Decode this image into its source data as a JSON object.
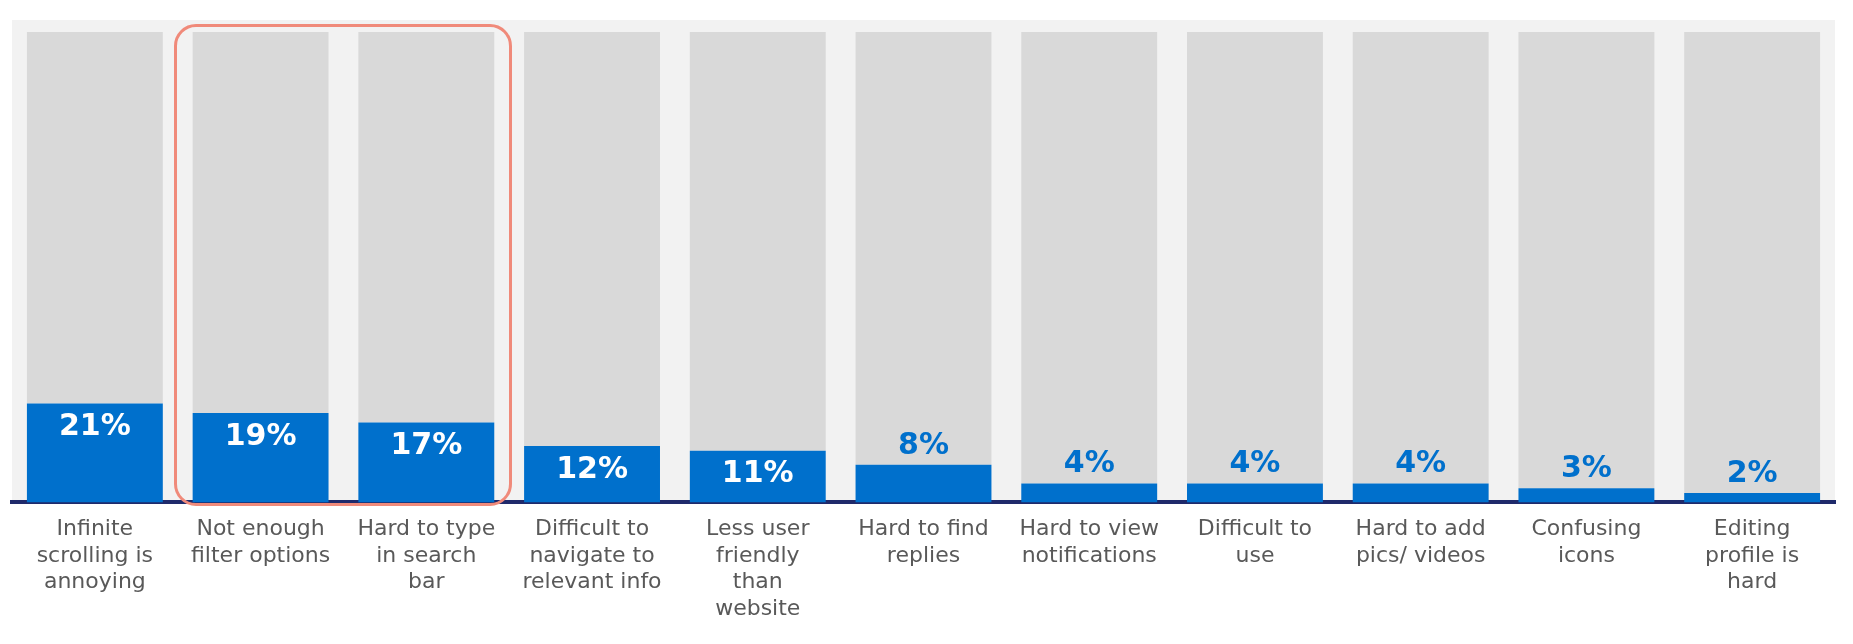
{
  "chart_data": {
    "type": "bar",
    "categories": [
      "Infinite scrolling is annoying",
      "Not enough filter options",
      "Hard to type in search bar",
      "Difficult to navigate to relevant info",
      "Less user friendly than website",
      "Hard to find replies",
      "Hard to view notifications",
      "Difficult to use",
      "Hard to add pics/ videos",
      "Confusing icons",
      "Editing profile is hard"
    ],
    "stacked": true,
    "series": [
      {
        "color": "#0070cc",
        "values": [
          21,
          19,
          17,
          12,
          11,
          8,
          4,
          4,
          4,
          3,
          2
        ],
        "value_labels": [
          "21%",
          "19%",
          "17%",
          "12%",
          "11%",
          "8%",
          "4%",
          "4%",
          "4%",
          "3%",
          "2%"
        ]
      },
      {
        "color": "#d9d9d9",
        "values": [
          79,
          81,
          83,
          88,
          89,
          92,
          96,
          96,
          96,
          97,
          98
        ]
      }
    ],
    "tick_labels": "x",
    "grid": false,
    "legend": false
  }
}
